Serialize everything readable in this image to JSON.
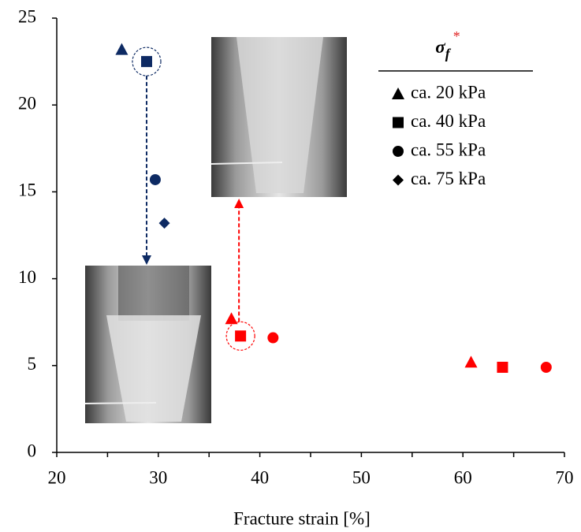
{
  "chart_data": {
    "type": "scatter",
    "x_label": "Fracture strain [%]",
    "xlim": [
      20,
      70
    ],
    "xticks": [
      20,
      30,
      40,
      50,
      60,
      70
    ],
    "xminorticks": [
      25,
      35,
      45,
      55,
      65
    ],
    "ylim": [
      0,
      25
    ],
    "yticks": [
      0,
      5,
      10,
      15,
      20,
      25
    ],
    "legend_title": {
      "symbol": "σ",
      "subscript": "f",
      "mark": "*",
      "mark_color": "#e02020"
    },
    "legend": "upper right",
    "series": [
      {
        "name": "ca. 20 kPa",
        "marker": "triangle",
        "x": [
          26.4,
          37.2,
          60.8
        ],
        "values": [
          23.2,
          7.7,
          5.2
        ],
        "colors": [
          "#0d2a63",
          "#ff0000",
          "#ff0000"
        ]
      },
      {
        "name": "ca. 40 kPa",
        "marker": "square",
        "x": [
          28.85,
          38.1,
          63.9
        ],
        "values": [
          22.5,
          6.7,
          4.9
        ],
        "colors": [
          "#0d2a63",
          "#ff0000",
          "#ff0000"
        ]
      },
      {
        "name": "ca. 55 kPa",
        "marker": "circle",
        "x": [
          29.7,
          41.3,
          68.2
        ],
        "values": [
          15.7,
          6.6,
          4.9
        ],
        "colors": [
          "#0d2a63",
          "#ff0000",
          "#ff0000"
        ]
      },
      {
        "name": "ca. 75 kPa",
        "marker": "diamond",
        "x": [
          30.6
        ],
        "values": [
          13.2
        ],
        "colors": [
          "#0d2a63"
        ]
      }
    ]
  }
}
